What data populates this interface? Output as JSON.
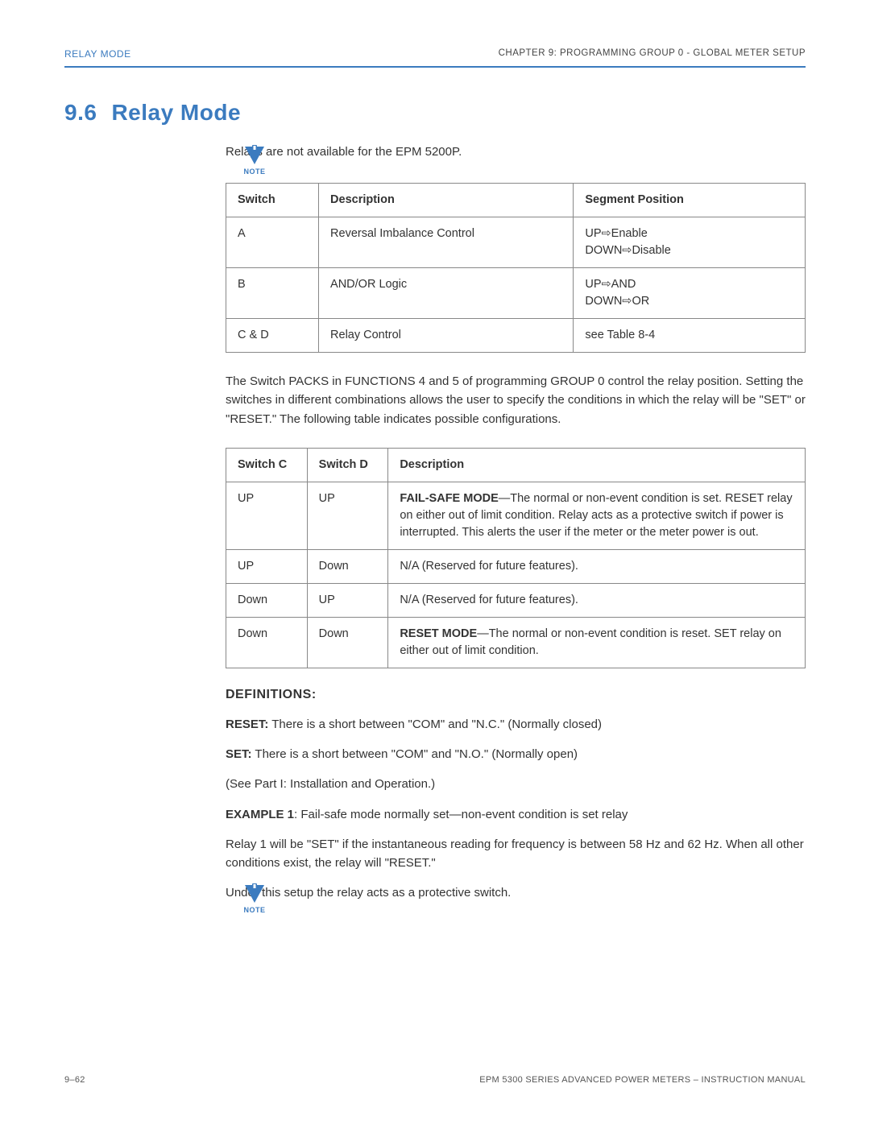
{
  "header": {
    "left": "RELAY MODE",
    "right": "CHAPTER 9: PROGRAMMING GROUP 0 - GLOBAL METER SETUP"
  },
  "section": {
    "number": "9.6",
    "title": "Relay Mode"
  },
  "note_label": "NOTE",
  "intro": "Relays are not available for the EPM 5200P.",
  "table1": {
    "columns": [
      "Switch",
      "Description",
      "Segment Position"
    ],
    "col_widths": [
      "16%",
      "44%",
      "40%"
    ],
    "rows": [
      [
        "A",
        "Reversal Imbalance Control",
        "UP⇨Enable\nDOWN⇨Disable"
      ],
      [
        "B",
        "AND/OR Logic",
        "UP⇨AND\nDOWN⇨OR"
      ],
      [
        "C & D",
        "Relay Control",
        "see Table 8-4"
      ]
    ]
  },
  "para1": "The Switch PACKS in FUNCTIONS 4 and 5 of programming GROUP 0 control the relay position. Setting the switches in different combinations allows the user to specify the conditions in which the relay will be \"SET\" or \"RESET.\" The following table indicates possible configurations.",
  "table2": {
    "columns": [
      "Switch C",
      "Switch D",
      "Description"
    ],
    "col_widths": [
      "14%",
      "14%",
      "72%"
    ],
    "rows": [
      {
        "c": "UP",
        "d": "UP",
        "desc_bold": "FAIL-SAFE MODE",
        "desc_rest": "—The normal or non-event condition is set. RESET relay on either out of limit condition. Relay acts as a protective switch if power is interrupted. This alerts the user if the meter or the meter power is out."
      },
      {
        "c": "UP",
        "d": "Down",
        "desc_bold": "",
        "desc_rest": "N/A (Reserved for future features)."
      },
      {
        "c": "Down",
        "d": "UP",
        "desc_bold": "",
        "desc_rest": "N/A (Reserved for future features)."
      },
      {
        "c": "Down",
        "d": "Down",
        "desc_bold": "RESET MODE",
        "desc_rest": "—The normal or non-event condition is reset. SET relay on either out of limit condition."
      }
    ]
  },
  "defs_heading": "DEFINITIONS:",
  "defs": [
    {
      "bold": "RESET:",
      "text": " There is a short between \"COM\" and \"N.C.\" (Normally closed)"
    },
    {
      "bold": "SET:",
      "text": " There is a short between \"COM\" and \"N.O.\" (Normally open)"
    },
    {
      "bold": "",
      "text": " (See Part I: Installation and Operation.)"
    },
    {
      "bold": "EXAMPLE 1",
      "text": ": Fail-safe mode normally set—non-event condition is set relay"
    }
  ],
  "para2": "Relay 1 will be \"SET\" if the instantaneous reading for frequency is between 58 Hz and 62 Hz. When all other conditions exist, the relay will \"RESET.\"",
  "para3": "Under this setup the relay acts as a protective switch.",
  "footer": {
    "left": "9–62",
    "right": "EPM 5300 SERIES ADVANCED POWER METERS – INSTRUCTION MANUAL"
  },
  "colors": {
    "accent": "#3b7bbf",
    "text": "#333333",
    "border": "#888888"
  }
}
